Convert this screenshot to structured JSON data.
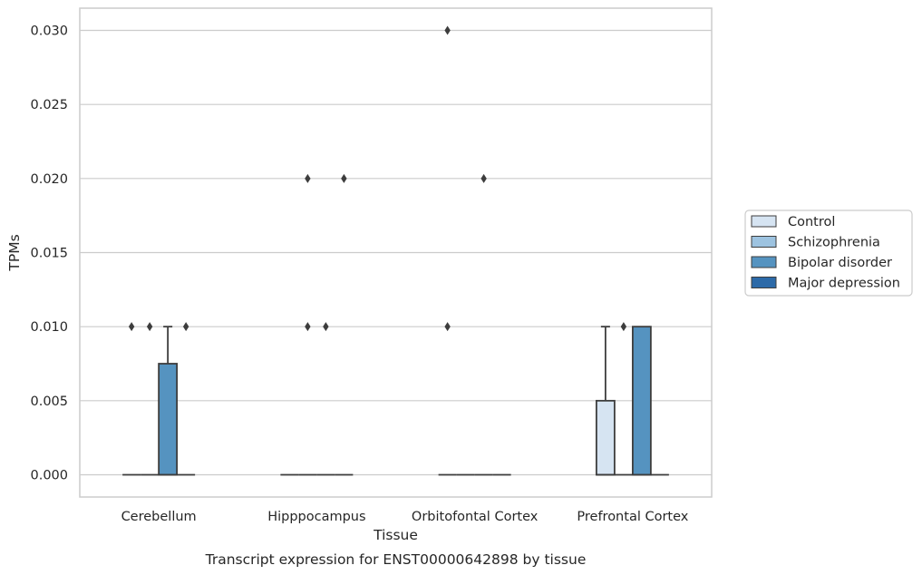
{
  "chart_data": {
    "type": "box",
    "title": "Transcript expression for ENST00000642898 by tissue",
    "xlabel": "Tissue",
    "ylabel": "TPMs",
    "categories": [
      "Cerebellum",
      "Hipppocampus",
      "Orbitofontal Cortex",
      "Prefrontal Cortex"
    ],
    "ylim": [
      -0.0015,
      0.0315
    ],
    "yticks": [
      "0.000",
      "0.005",
      "0.010",
      "0.015",
      "0.020",
      "0.025",
      "0.030"
    ],
    "grid": "horizontal",
    "legend_position": "right",
    "series": [
      {
        "name": "Control",
        "color": "#d6e4f2",
        "boxes": [
          {
            "q1": 0,
            "median": 0,
            "q3": 0,
            "whisker_low": 0,
            "whisker_high": 0,
            "outliers": [
              0.01
            ]
          },
          {
            "q1": 0,
            "median": 0,
            "q3": 0,
            "whisker_low": 0,
            "whisker_high": 0,
            "outliers": []
          },
          {
            "q1": 0,
            "median": 0,
            "q3": 0,
            "whisker_low": 0,
            "whisker_high": 0,
            "outliers": [
              0.01,
              0.03
            ]
          },
          {
            "q1": 0,
            "median": 0,
            "q3": 0.005,
            "whisker_low": 0,
            "whisker_high": 0.01,
            "outliers": []
          }
        ]
      },
      {
        "name": "Schizophrenia",
        "color": "#9dc3e0",
        "boxes": [
          {
            "q1": 0,
            "median": 0,
            "q3": 0,
            "whisker_low": 0,
            "whisker_high": 0,
            "outliers": [
              0.01
            ]
          },
          {
            "q1": 0,
            "median": 0,
            "q3": 0,
            "whisker_low": 0,
            "whisker_high": 0,
            "outliers": [
              0.01,
              0.02
            ]
          },
          {
            "q1": 0,
            "median": 0,
            "q3": 0,
            "whisker_low": 0,
            "whisker_high": 0,
            "outliers": []
          },
          {
            "q1": 0,
            "median": 0,
            "q3": 0,
            "whisker_low": 0,
            "whisker_high": 0,
            "outliers": [
              0.01
            ]
          }
        ]
      },
      {
        "name": "Bipolar disorder",
        "color": "#5593c0",
        "boxes": [
          {
            "q1": 0,
            "median": 0,
            "q3": 0.0075,
            "whisker_low": 0,
            "whisker_high": 0.01,
            "outliers": []
          },
          {
            "q1": 0,
            "median": 0,
            "q3": 0,
            "whisker_low": 0,
            "whisker_high": 0,
            "outliers": [
              0.01
            ]
          },
          {
            "q1": 0,
            "median": 0,
            "q3": 0,
            "whisker_low": 0,
            "whisker_high": 0,
            "outliers": [
              0.02
            ]
          },
          {
            "q1": 0,
            "median": 0,
            "q3": 0.01,
            "whisker_low": 0,
            "whisker_high": 0.01,
            "outliers": []
          }
        ]
      },
      {
        "name": "Major depression",
        "color": "#2c6aa8",
        "boxes": [
          {
            "q1": 0,
            "median": 0,
            "q3": 0,
            "whisker_low": 0,
            "whisker_high": 0,
            "outliers": [
              0.01
            ]
          },
          {
            "q1": 0,
            "median": 0,
            "q3": 0,
            "whisker_low": 0,
            "whisker_high": 0,
            "outliers": [
              0.02
            ]
          },
          {
            "q1": 0,
            "median": 0,
            "q3": 0,
            "whisker_low": 0,
            "whisker_high": 0,
            "outliers": []
          },
          {
            "q1": 0,
            "median": 0,
            "q3": 0,
            "whisker_low": 0,
            "whisker_high": 0,
            "outliers": []
          }
        ]
      }
    ]
  }
}
